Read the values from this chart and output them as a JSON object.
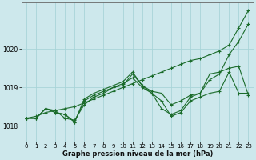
{
  "background_color": "#cde8ec",
  "grid_color": "#a8d4d8",
  "line_color": "#1a6b2a",
  "xlabel": "Graphe pression niveau de la mer (hPa)",
  "xlim": [
    -0.5,
    23.5
  ],
  "ylim": [
    1017.6,
    1021.2
  ],
  "yticks": [
    1018,
    1019,
    1020
  ],
  "xticks": [
    0,
    1,
    2,
    3,
    4,
    5,
    6,
    7,
    8,
    9,
    10,
    11,
    12,
    13,
    14,
    15,
    16,
    17,
    18,
    19,
    20,
    21,
    22,
    23
  ],
  "series": [
    {
      "x": [
        0,
        1,
        2,
        3,
        4,
        5,
        6,
        7,
        8,
        9,
        10,
        11,
        12,
        13,
        14,
        15,
        16,
        17,
        18,
        19,
        20,
        21,
        22,
        23
      ],
      "y": [
        1018.2,
        1018.25,
        1018.35,
        1018.4,
        1018.45,
        1018.5,
        1018.6,
        1018.7,
        1018.8,
        1018.9,
        1019.0,
        1019.1,
        1019.2,
        1019.3,
        1019.4,
        1019.5,
        1019.6,
        1019.7,
        1019.75,
        1019.85,
        1019.95,
        1020.1,
        1020.55,
        1021.0
      ]
    },
    {
      "x": [
        0,
        1,
        2,
        3,
        4,
        5,
        6,
        7,
        8,
        9,
        10,
        11,
        12,
        13,
        14,
        15,
        16,
        17,
        18,
        19,
        20,
        21,
        22,
        23
      ],
      "y": [
        1018.2,
        1018.2,
        1018.45,
        1018.4,
        1018.2,
        1018.15,
        1018.55,
        1018.75,
        1018.85,
        1019.0,
        1019.05,
        1019.35,
        1019.05,
        1018.85,
        1018.45,
        1018.3,
        1018.4,
        1018.75,
        1018.85,
        1019.2,
        1019.35,
        1019.85,
        1020.2,
        1020.65
      ]
    },
    {
      "x": [
        0,
        1,
        2,
        3,
        4,
        5,
        6,
        7,
        8,
        9,
        10,
        11,
        12,
        13,
        14,
        15,
        16,
        17,
        18,
        19,
        20,
        21,
        22,
        23
      ],
      "y": [
        1018.2,
        1018.2,
        1018.45,
        1018.35,
        1018.3,
        1018.1,
        1018.7,
        1018.85,
        1018.95,
        1019.05,
        1019.15,
        1019.4,
        1019.05,
        1018.9,
        1018.85,
        1018.55,
        1018.65,
        1018.8,
        1018.85,
        1019.35,
        1019.4,
        1019.5,
        1019.55,
        1018.8
      ]
    },
    {
      "x": [
        0,
        1,
        2,
        3,
        4,
        5,
        6,
        7,
        8,
        9,
        10,
        11,
        12,
        13,
        14,
        15,
        16,
        17,
        18,
        19,
        20,
        21,
        22,
        23
      ],
      "y": [
        1018.2,
        1018.2,
        1018.45,
        1018.35,
        1018.3,
        1018.1,
        1018.65,
        1018.8,
        1018.9,
        1019.0,
        1019.1,
        1019.25,
        1019.0,
        1018.85,
        1018.65,
        1018.25,
        1018.35,
        1018.65,
        1018.75,
        1018.85,
        1018.9,
        1019.4,
        1018.85,
        1018.85
      ]
    }
  ]
}
